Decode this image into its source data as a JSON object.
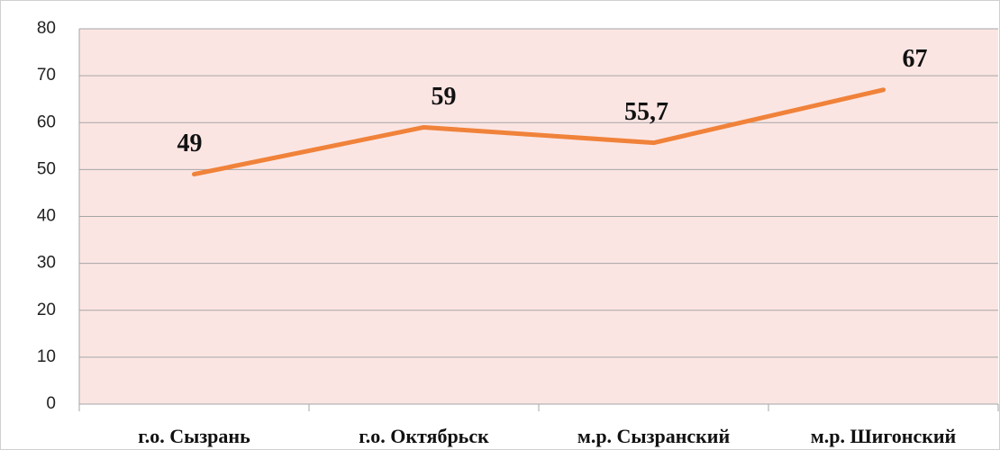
{
  "chart_data": {
    "type": "line",
    "categories": [
      "г.о. Сызрань",
      "г.о. Октябрьск",
      "м.р. Сызранский",
      "м.р. Шигонский"
    ],
    "series": [
      {
        "name": null,
        "color": "#f0823a",
        "values": [
          49,
          59,
          55.7,
          67
        ],
        "value_labels": [
          "49",
          "59",
          "55,7",
          "67"
        ]
      }
    ],
    "ylim": [
      0,
      80
    ],
    "yticks": [
      0,
      10,
      20,
      30,
      40,
      50,
      60,
      70,
      80
    ],
    "grid": true
  }
}
